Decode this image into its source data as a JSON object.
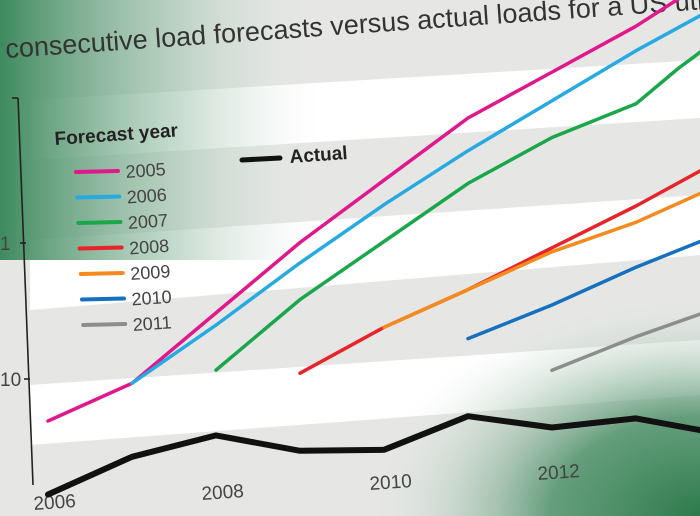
{
  "chart_data": {
    "type": "line",
    "title": "consecutive load forecasts versus actual loads for a US utility",
    "xlabel": "",
    "ylabel": "",
    "x_ticks": [
      "2006",
      "2008",
      "2010",
      "2012"
    ],
    "y_ticks": [
      "1",
      "10"
    ],
    "xlim": [
      2006,
      2014
    ],
    "ylim": [
      0,
      100
    ],
    "legend": {
      "title": "Forecast year",
      "placement": "top-left",
      "entries": [
        "2005",
        "2006",
        "2007",
        "2008",
        "2009",
        "2010",
        "2011"
      ],
      "actual_label": "Actual"
    },
    "series": [
      {
        "name": "2005",
        "color": "#e0188c",
        "x": [
          2006,
          2007,
          2008,
          2009,
          2010,
          2011,
          2012,
          2013,
          2014
        ],
        "y": [
          12,
          20,
          36,
          52,
          66,
          80,
          90,
          100,
          112
        ]
      },
      {
        "name": "2006",
        "color": "#27a9e1",
        "x": [
          2007,
          2008,
          2009,
          2010,
          2011,
          2012,
          2013,
          2014
        ],
        "y": [
          20,
          33,
          47,
          60,
          72,
          83,
          94,
          104
        ]
      },
      {
        "name": "2007",
        "color": "#1aa64b",
        "x": [
          2008,
          2009,
          2010,
          2011,
          2012,
          2013,
          2013.5,
          2014
        ],
        "y": [
          22,
          38,
          51,
          64,
          74,
          81,
          89,
          96
        ]
      },
      {
        "name": "2008",
        "color": "#e8242b",
        "x": [
          2009,
          2010,
          2011,
          2012,
          2013,
          2014
        ],
        "y": [
          20,
          30,
          38,
          47,
          56,
          66
        ]
      },
      {
        "name": "2009",
        "color": "#f58a1f",
        "x": [
          2010,
          2011,
          2012,
          2013,
          2014
        ],
        "y": [
          30,
          38,
          46,
          52,
          60
        ]
      },
      {
        "name": "2010",
        "color": "#1570be",
        "x": [
          2011,
          2012,
          2013,
          2014
        ],
        "y": [
          26,
          33,
          41,
          48
        ]
      },
      {
        "name": "2011",
        "color": "#8c8d8c",
        "x": [
          2012,
          2013,
          2014
        ],
        "y": [
          17,
          24,
          30
        ]
      },
      {
        "name": "Actual",
        "color": "#111111",
        "x": [
          2006,
          2007,
          2008,
          2009,
          2010,
          2011,
          2012,
          2013,
          2014
        ],
        "y": [
          -6,
          2,
          6,
          1,
          0,
          7,
          3,
          4,
          -1
        ]
      }
    ],
    "grid": "horizontal bands"
  }
}
